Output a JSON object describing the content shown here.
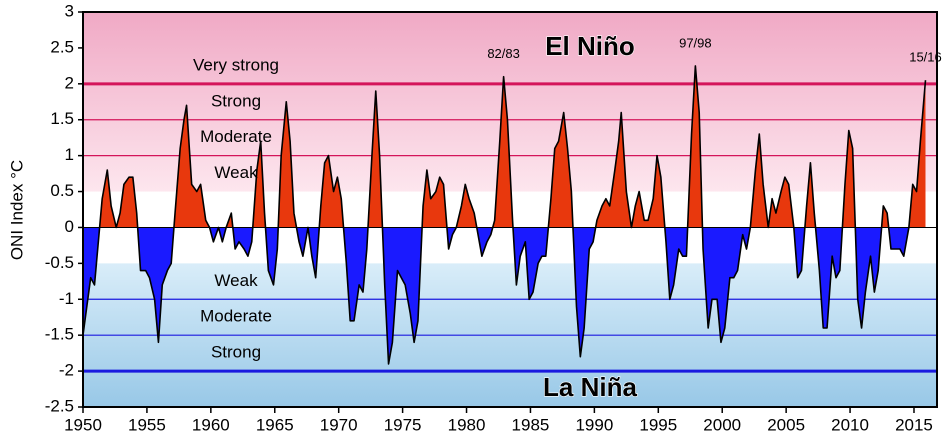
{
  "chart_data": {
    "type": "area",
    "y_label": "ONI Index °C",
    "xlim": [
      1950,
      2016.8
    ],
    "xticks": [
      1950,
      1955,
      1960,
      1965,
      1970,
      1975,
      1980,
      1985,
      1990,
      1995,
      2000,
      2005,
      2010,
      2015
    ],
    "ylim": [
      -2.5,
      3
    ],
    "yticks": [
      3,
      2.5,
      2,
      1.5,
      1,
      0.5,
      0,
      -0.5,
      -1,
      -1.5,
      -2,
      -2.5
    ],
    "x": [
      1950.0,
      1950.3,
      1950.6,
      1950.9,
      1951.2,
      1951.5,
      1951.9,
      1952.2,
      1952.6,
      1952.9,
      1953.2,
      1953.6,
      1953.9,
      1954.2,
      1954.5,
      1954.9,
      1955.2,
      1955.6,
      1955.9,
      1956.2,
      1956.6,
      1956.9,
      1957.2,
      1957.6,
      1957.9,
      1958.1,
      1958.5,
      1958.9,
      1959.2,
      1959.6,
      1959.9,
      1960.2,
      1960.6,
      1960.9,
      1961.2,
      1961.6,
      1961.9,
      1962.2,
      1962.6,
      1962.9,
      1963.2,
      1963.6,
      1963.9,
      1964.2,
      1964.5,
      1964.9,
      1965.2,
      1965.5,
      1965.9,
      1966.2,
      1966.5,
      1966.9,
      1967.2,
      1967.6,
      1967.9,
      1968.2,
      1968.6,
      1968.9,
      1969.2,
      1969.6,
      1969.9,
      1970.2,
      1970.6,
      1970.9,
      1971.2,
      1971.6,
      1971.9,
      1972.2,
      1972.6,
      1972.9,
      1973.2,
      1973.6,
      1973.9,
      1974.2,
      1974.6,
      1974.9,
      1975.2,
      1975.6,
      1975.9,
      1976.2,
      1976.6,
      1976.9,
      1977.2,
      1977.6,
      1977.9,
      1978.2,
      1978.6,
      1978.9,
      1979.2,
      1979.6,
      1979.9,
      1980.2,
      1980.6,
      1980.9,
      1981.2,
      1981.6,
      1981.9,
      1982.2,
      1982.6,
      1982.9,
      1983.2,
      1983.6,
      1983.9,
      1984.2,
      1984.6,
      1984.9,
      1985.2,
      1985.6,
      1985.9,
      1986.2,
      1986.6,
      1986.9,
      1987.2,
      1987.6,
      1987.9,
      1988.2,
      1988.6,
      1988.9,
      1989.2,
      1989.6,
      1989.9,
      1990.2,
      1990.6,
      1990.9,
      1991.2,
      1991.6,
      1991.9,
      1992.1,
      1992.5,
      1992.9,
      1993.2,
      1993.5,
      1993.9,
      1994.2,
      1994.6,
      1994.9,
      1995.2,
      1995.6,
      1995.9,
      1996.2,
      1996.6,
      1996.9,
      1997.2,
      1997.6,
      1997.9,
      1998.2,
      1998.5,
      1998.9,
      1999.2,
      1999.6,
      1999.9,
      2000.2,
      2000.6,
      2000.9,
      2001.2,
      2001.6,
      2001.9,
      2002.2,
      2002.6,
      2002.9,
      2003.2,
      2003.6,
      2003.9,
      2004.2,
      2004.6,
      2004.9,
      2005.2,
      2005.6,
      2005.9,
      2006.2,
      2006.6,
      2006.9,
      2007.2,
      2007.6,
      2007.9,
      2008.2,
      2008.6,
      2008.9,
      2009.2,
      2009.6,
      2009.9,
      2010.2,
      2010.6,
      2010.9,
      2011.2,
      2011.6,
      2011.9,
      2012.2,
      2012.6,
      2012.9,
      2013.2,
      2013.6,
      2013.9,
      2014.2,
      2014.6,
      2014.9,
      2015.2,
      2015.5,
      2015.9
    ],
    "series": [
      {
        "name": "ONI",
        "color": "#000000",
        "positive_color": "#e8380d",
        "negative_color": "#1a1aff",
        "values": [
          -1.5,
          -1.1,
          -0.7,
          -0.8,
          -0.2,
          0.4,
          0.8,
          0.3,
          0.0,
          0.2,
          0.6,
          0.7,
          0.7,
          0.2,
          -0.6,
          -0.6,
          -0.7,
          -1.0,
          -1.6,
          -0.8,
          -0.6,
          -0.5,
          0.2,
          1.1,
          1.5,
          1.7,
          0.6,
          0.5,
          0.6,
          0.1,
          0.0,
          -0.2,
          0.0,
          -0.2,
          0.0,
          0.2,
          -0.3,
          -0.2,
          -0.3,
          -0.4,
          -0.2,
          0.8,
          1.2,
          0.2,
          -0.6,
          -0.8,
          -0.3,
          1.0,
          1.75,
          1.2,
          0.2,
          -0.2,
          -0.4,
          0.0,
          -0.4,
          -0.7,
          0.3,
          0.9,
          1.0,
          0.5,
          0.7,
          0.4,
          -0.5,
          -1.3,
          -1.3,
          -0.8,
          -0.9,
          -0.3,
          1.0,
          1.9,
          1.0,
          -0.8,
          -1.9,
          -1.6,
          -0.6,
          -0.7,
          -0.8,
          -1.2,
          -1.6,
          -1.3,
          0.3,
          0.8,
          0.4,
          0.5,
          0.7,
          0.6,
          -0.3,
          -0.1,
          0.0,
          0.3,
          0.6,
          0.4,
          0.2,
          -0.1,
          -0.4,
          -0.2,
          -0.1,
          0.1,
          1.2,
          2.1,
          1.5,
          0.1,
          -0.8,
          -0.4,
          -0.2,
          -1.0,
          -0.9,
          -0.5,
          -0.4,
          -0.4,
          0.4,
          1.1,
          1.2,
          1.6,
          1.1,
          0.5,
          -1.1,
          -1.8,
          -1.4,
          -0.3,
          -0.2,
          0.1,
          0.3,
          0.4,
          0.3,
          0.8,
          1.2,
          1.6,
          0.5,
          0.0,
          0.3,
          0.5,
          0.1,
          0.1,
          0.4,
          1.0,
          0.7,
          -0.2,
          -1.0,
          -0.8,
          -0.3,
          -0.4,
          -0.4,
          1.3,
          2.25,
          1.6,
          -0.3,
          -1.4,
          -1.0,
          -1.0,
          -1.6,
          -1.4,
          -0.7,
          -0.7,
          -0.6,
          -0.1,
          -0.3,
          0.0,
          0.8,
          1.3,
          0.6,
          0.0,
          0.4,
          0.2,
          0.5,
          0.7,
          0.6,
          0.0,
          -0.7,
          -0.6,
          0.3,
          0.9,
          0.2,
          -0.6,
          -1.4,
          -1.4,
          -0.4,
          -0.7,
          -0.6,
          0.6,
          1.35,
          1.1,
          -1.0,
          -1.4,
          -0.9,
          -0.4,
          -0.9,
          -0.6,
          0.3,
          0.2,
          -0.3,
          -0.3,
          -0.3,
          -0.4,
          0.0,
          0.6,
          0.5,
          1.2,
          2.05
        ]
      }
    ],
    "bands": [
      {
        "name": "El Niño",
        "color": "#d4145a",
        "colors": [
          "#f0a9c5",
          "#fde6ee"
        ],
        "range": [
          0.5,
          3
        ],
        "thresholds": [
          1,
          1.5,
          2
        ],
        "levels": [
          "Weak",
          "Moderate",
          "Strong",
          "Very strong"
        ]
      },
      {
        "name": "La Niña",
        "color": "#1a1adf",
        "colors": [
          "#98c8e7",
          "#d9edf9"
        ],
        "range": [
          -2.5,
          -0.5
        ],
        "thresholds": [
          -1,
          -1.5,
          -2
        ],
        "levels": [
          "Weak",
          "Moderate",
          "Strong"
        ]
      }
    ],
    "annotations": [
      {
        "text": "82/83",
        "x": 1982.9
      },
      {
        "text": "97/98",
        "x": 1997.9
      },
      {
        "text": "15/16",
        "x": 2015.9
      }
    ]
  }
}
